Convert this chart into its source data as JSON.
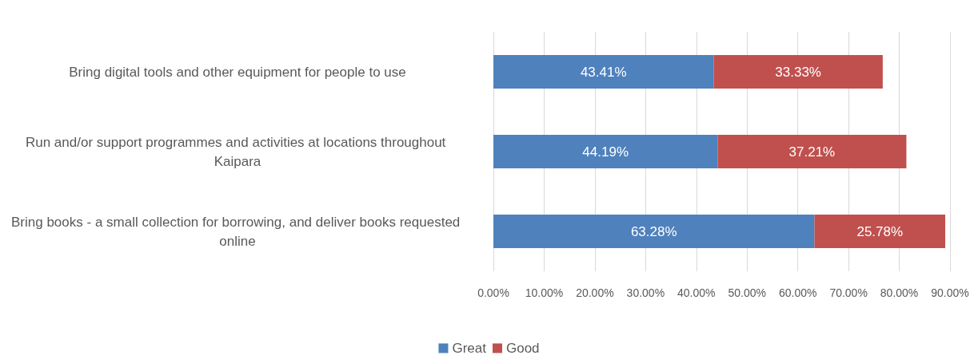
{
  "chart_data": {
    "type": "bar",
    "orientation": "horizontal",
    "stacked": true,
    "categories": [
      "Bring digital tools and other equipment for people to use",
      "Run and/or support programmes and activities at locations throughout Kaipara",
      "Bring books - a small collection for borrowing, and deliver books requested online"
    ],
    "series": [
      {
        "name": "Great",
        "color": "#4f81bd",
        "values": [
          43.41,
          44.19,
          63.28
        ],
        "value_labels": [
          "43.41%",
          "44.19%",
          "63.28%"
        ]
      },
      {
        "name": "Good",
        "color": "#c0504d",
        "values": [
          33.33,
          37.21,
          25.78
        ],
        "value_labels": [
          "33.33%",
          "37.21%",
          "25.78%"
        ]
      }
    ],
    "xlim": [
      0,
      90
    ],
    "xticks": [
      {
        "value": 0,
        "label": "0.00%"
      },
      {
        "value": 10,
        "label": "10.00%"
      },
      {
        "value": 20,
        "label": "20.00%"
      },
      {
        "value": 30,
        "label": "30.00%"
      },
      {
        "value": 40,
        "label": "40.00%"
      },
      {
        "value": 50,
        "label": "50.00%"
      },
      {
        "value": 60,
        "label": "60.00%"
      },
      {
        "value": 70,
        "label": "70.00%"
      },
      {
        "value": 80,
        "label": "80.00%"
      },
      {
        "value": 90,
        "label": "90.00%"
      }
    ],
    "grid": "x",
    "legend": "bottom"
  }
}
